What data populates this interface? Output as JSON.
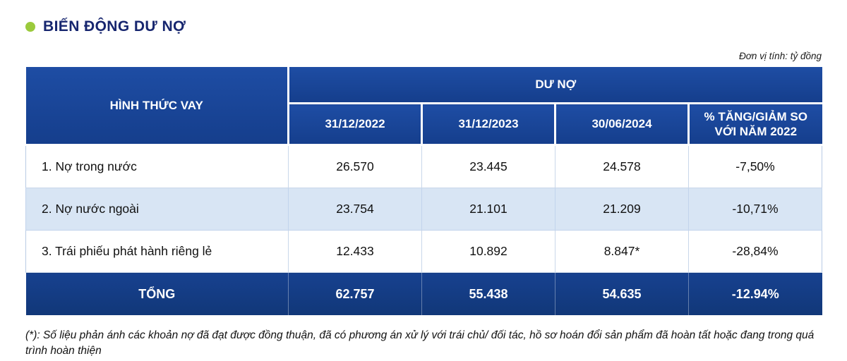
{
  "header": {
    "title": "BIẾN ĐỘNG DƯ NỢ",
    "unit_note": "Đơn vị tính: tỷ đồng"
  },
  "colors": {
    "header_blue": "#17418F",
    "row_alt_blue": "#D8E5F4",
    "total_row_blue": "#113778",
    "title_navy": "#17266F",
    "bullet_green": "#9BCA3C"
  },
  "table": {
    "col1_header": "HÌNH THỨC VAY",
    "group_header": "DƯ NỢ",
    "sub_headers": [
      "31/12/2022",
      "31/12/2023",
      "30/06/2024",
      "% TĂNG/GIẢM SO VỚI NĂM 2022"
    ],
    "rows": [
      {
        "label": "1. Nợ trong nước",
        "values": [
          "26.570",
          "23.445",
          "24.578",
          "-7,50%"
        ]
      },
      {
        "label": "2. Nợ nước ngoài",
        "values": [
          "23.754",
          "21.101",
          "21.209",
          "-10,71%"
        ]
      },
      {
        "label": "3. Trái phiếu phát hành riêng lẻ",
        "values": [
          "12.433",
          "10.892",
          "8.847*",
          "-28,84%"
        ]
      }
    ],
    "total": {
      "label": "TỔNG",
      "values": [
        "62.757",
        "55.438",
        "54.635",
        "-12.94%"
      ]
    }
  },
  "footnote": "(*): Số liệu phản ánh các khoản nợ đã đạt được đồng thuận, đã có phương án xử lý với trái chủ/ đối tác, hồ sơ hoán đổi sản phẩm đã hoàn tất hoặc đang trong quá trình hoàn thiện"
}
